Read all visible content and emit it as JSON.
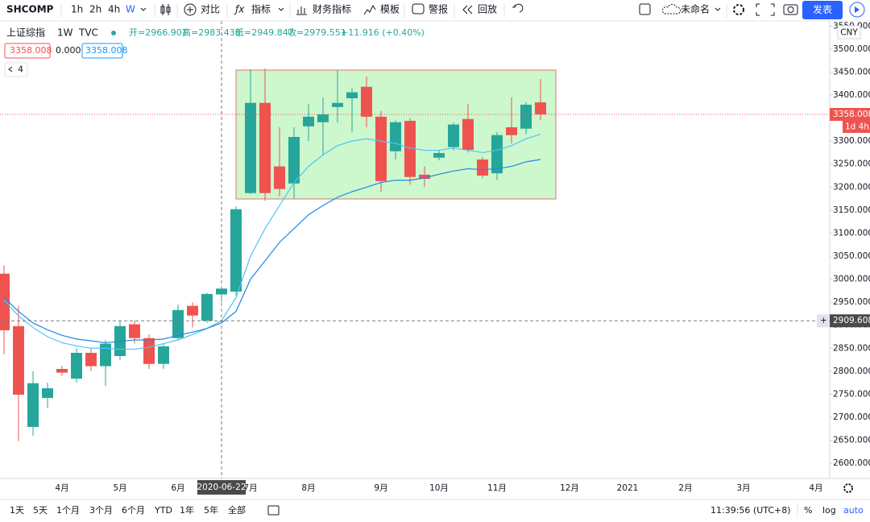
{
  "ui": {
    "toolbar": {
      "symbol": "SHCOMP",
      "intervals": [
        "1h",
        "2h",
        "4h",
        "W"
      ],
      "compare": "对比",
      "indicators": "指标",
      "financials": "财务指标",
      "templates": "模板",
      "alerts": "警报",
      "replay": "回放",
      "layout_name": "未命名",
      "publish": "发表"
    },
    "legend": {
      "name": "上证综指",
      "interval": "1W",
      "source": "TVC",
      "open": "开=2966.901",
      "high": "高=2983.438",
      "low": "低=2949.847",
      "close": "收=2979.551",
      "change": "+11.916 (+0.40%)",
      "values": [
        "3358.008",
        "0.000",
        "3358.008"
      ],
      "collapse": "4"
    },
    "price_axis": {
      "currency": "CNY",
      "countdown": "1d 4h"
    },
    "bottom_bar": {
      "ranges": [
        "1天",
        "5天",
        "1个月",
        "3个月",
        "6个月",
        "YTD",
        "1年",
        "5年",
        "全部"
      ],
      "clock": "11:39:56 (UTC+8)",
      "percent": "%",
      "log": "log",
      "auto": "auto"
    }
  },
  "chart_data": {
    "type": "candlestick",
    "categories": [
      null,
      null,
      null,
      null,
      "4月",
      null,
      null,
      null,
      "5月",
      null,
      null,
      null,
      "6月",
      null,
      null,
      null,
      null,
      "7月",
      null,
      null,
      null,
      "8月",
      null,
      null,
      null,
      null,
      "9月",
      null,
      null,
      null,
      "10月",
      null,
      null,
      null,
      "11月",
      null,
      null,
      null,
      null,
      "12月",
      null,
      null,
      null,
      "2021",
      null,
      null,
      null,
      "2月",
      null,
      null,
      null,
      "3月",
      null,
      null,
      null,
      null,
      "4月"
    ],
    "open": [
      3012,
      2898,
      2679,
      2742,
      2805,
      2784,
      2840,
      2811,
      2833,
      2902,
      2872,
      2816,
      2872,
      2942,
      2910,
      2966.901,
      2973,
      3187,
      3383,
      3245,
      3208,
      3332,
      3341,
      3374,
      3393,
      3418,
      3353,
      3278,
      3344,
      3227,
      3264,
      3287,
      3348,
      3260,
      3230,
      3330,
      3327,
      3384,
      null,
      null,
      null,
      null,
      null,
      null,
      null,
      null,
      null,
      null,
      null,
      null,
      null,
      null,
      null,
      null,
      null,
      null,
      null
    ],
    "high": [
      3030,
      2942,
      2800,
      2775,
      2812,
      2850,
      2850,
      2868,
      2910,
      2910,
      2880,
      2860,
      2945,
      2950,
      2970,
      2983.438,
      3158,
      3456,
      3458,
      3330,
      3330,
      3380,
      3395,
      3455,
      3415,
      3440,
      3365,
      3345,
      3350,
      3245,
      3280,
      3340,
      3380,
      3265,
      3320,
      3395,
      3385,
      3435,
      null,
      null,
      null,
      null,
      null,
      null,
      null,
      null,
      null,
      null,
      null,
      null,
      null,
      null,
      null,
      null,
      null,
      null,
      null
    ],
    "low": [
      2837,
      2648,
      2660,
      2720,
      2790,
      2775,
      2800,
      2768,
      2825,
      2860,
      2805,
      2805,
      2868,
      2895,
      2905,
      2949.847,
      2965,
      3185,
      3170,
      3180,
      3175,
      3300,
      3270,
      3340,
      3320,
      3330,
      3190,
      3260,
      3205,
      3200,
      3258,
      3280,
      3275,
      3220,
      3215,
      3295,
      3315,
      3345,
      null,
      null,
      null,
      null,
      null,
      null,
      null,
      null,
      null,
      null,
      null,
      null,
      null,
      null,
      null,
      null,
      null,
      null,
      null
    ],
    "close": [
      2889,
      2749,
      2774,
      2763,
      2797,
      2840,
      2811,
      2860,
      2898,
      2872,
      2816,
      2854,
      2933,
      2921,
      2968,
      2979.551,
      3152,
      3383,
      3187,
      3196,
      3309,
      3353,
      3358,
      3383,
      3406,
      3353,
      3213,
      3341,
      3222,
      3218,
      3274,
      3336,
      3281,
      3225,
      3313,
      3313,
      3379,
      3358,
      null,
      null,
      null,
      null,
      null,
      null,
      null,
      null,
      null,
      null,
      null,
      null,
      null,
      null,
      null,
      null,
      null,
      null,
      null
    ],
    "up_color": "#26a69a",
    "down_color": "#ef5350",
    "lines": [
      {
        "color": "#4fc3f7",
        "values": [
          2955,
          2920,
          2895,
          2875,
          2862,
          2855,
          2850,
          2850,
          2848,
          2848,
          2852,
          2860,
          2868,
          2880,
          2893,
          2910,
          2960,
          3050,
          3110,
          3160,
          3210,
          3245,
          3270,
          3290,
          3300,
          3305,
          3300,
          3295,
          3285,
          3280,
          3280,
          3285,
          3280,
          3275,
          3280,
          3290,
          3305,
          3315,
          null,
          null,
          null,
          null,
          null,
          null,
          null,
          null,
          null,
          null,
          null,
          null,
          null,
          null,
          null,
          null,
          null,
          null,
          null
        ]
      },
      {
        "color": "#1e88e5",
        "values": [
          2960,
          2930,
          2905,
          2890,
          2878,
          2870,
          2866,
          2862,
          2865,
          2868,
          2868,
          2870,
          2878,
          2885,
          2893,
          2905,
          2930,
          3000,
          3040,
          3080,
          3110,
          3140,
          3160,
          3178,
          3190,
          3200,
          3210,
          3215,
          3215,
          3220,
          3228,
          3235,
          3240,
          3238,
          3240,
          3245,
          3255,
          3260,
          null,
          null,
          null,
          null,
          null,
          null,
          null,
          null,
          null,
          null,
          null,
          null,
          null,
          null,
          null,
          null,
          null,
          null,
          null
        ]
      }
    ],
    "ylim": [
      2567,
      3561
    ],
    "yticks": [
      {
        "value": 2600,
        "label": "2600.000"
      },
      {
        "value": 2650,
        "label": "2650.000"
      },
      {
        "value": 2700,
        "label": "2700.000"
      },
      {
        "value": 2750,
        "label": "2750.000"
      },
      {
        "value": 2800,
        "label": "2800.000"
      },
      {
        "value": 2850,
        "label": "2850.000"
      },
      {
        "value": 2900,
        "label": "2900.000"
      },
      {
        "value": 2950,
        "label": "2950.000"
      },
      {
        "value": 3000,
        "label": "3000.000"
      },
      {
        "value": 3050,
        "label": "3050.000"
      },
      {
        "value": 3100,
        "label": "3100.000"
      },
      {
        "value": 3150,
        "label": "3150.000"
      },
      {
        "value": 3200,
        "label": "3200.000"
      },
      {
        "value": 3250,
        "label": "3250.000"
      },
      {
        "value": 3300,
        "label": "3300.000"
      },
      {
        "value": 3350,
        "label": "3350.000"
      },
      {
        "value": 3400,
        "label": "3400.000"
      },
      {
        "value": 3450,
        "label": "3450.000"
      },
      {
        "value": 3500,
        "label": "3500.000"
      },
      {
        "value": 3550,
        "label": "3550.000"
      }
    ],
    "last_price": 3358.008,
    "crosshair": {
      "value": 2909.608,
      "label": "2020-06-22"
    }
  }
}
